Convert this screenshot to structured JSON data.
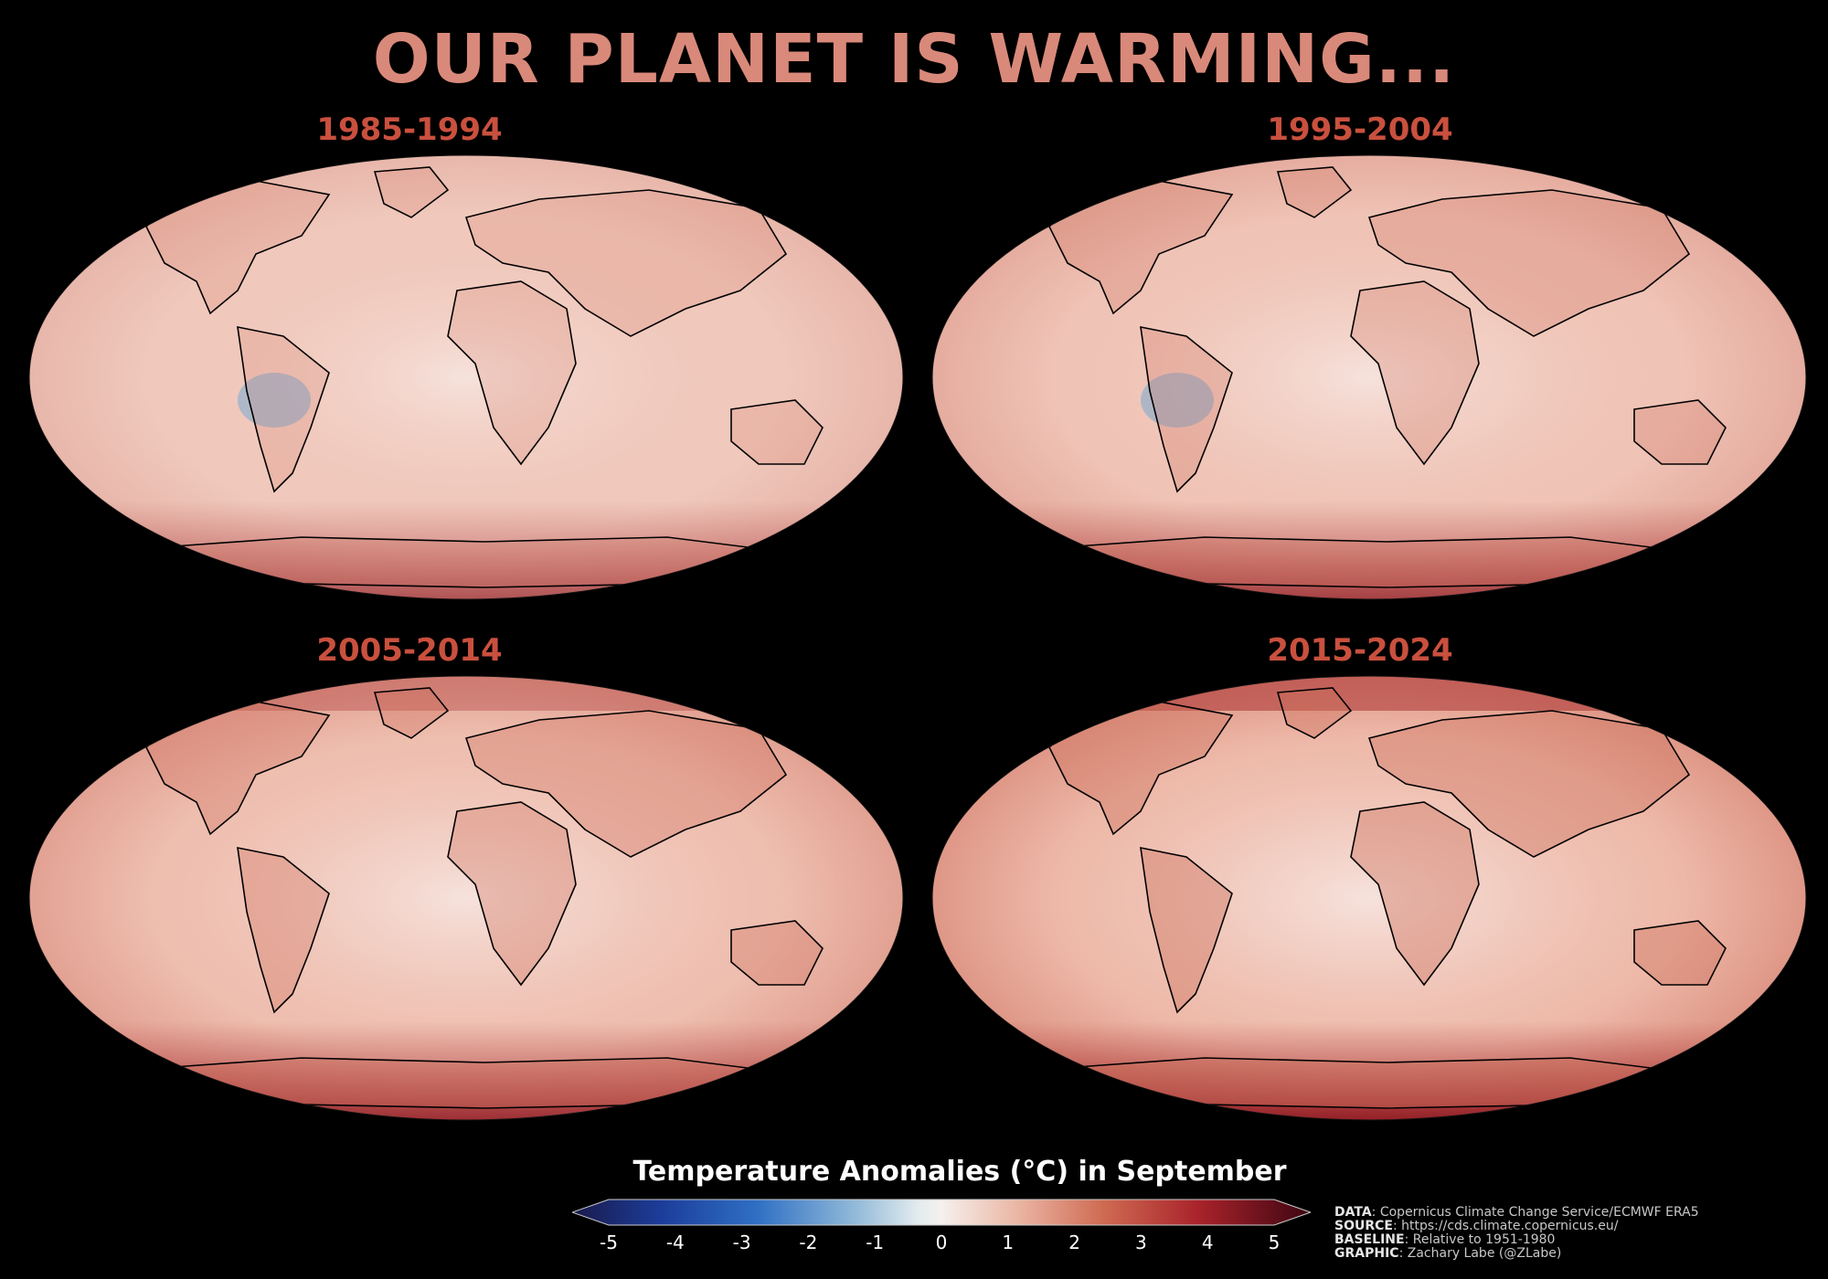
{
  "title": "OUR PLANET IS WARMING...",
  "colors": {
    "title": "#d9897a",
    "panel_title": "#c9503e"
  },
  "panels": [
    {
      "label": "1985-1994",
      "level": 0.25
    },
    {
      "label": "1995-2004",
      "level": 0.45
    },
    {
      "label": "2005-2014",
      "level": 0.65
    },
    {
      "label": "2015-2024",
      "level": 0.85
    }
  ],
  "colorbar": {
    "title": "Temperature Anomalies (°C) in September",
    "ticks": [
      "-5",
      "-4",
      "-3",
      "-2",
      "-1",
      "0",
      "1",
      "2",
      "3",
      "4",
      "5"
    ]
  },
  "credits": [
    {
      "key": "DATA",
      "value": ": Copernicus Climate Change Service/ECMWF ERA5"
    },
    {
      "key": "SOURCE",
      "value": ": https://cds.climate.copernicus.eu/"
    },
    {
      "key": "BASELINE",
      "value": ": Relative to 1951-1980"
    },
    {
      "key": "GRAPHIC",
      "value": ": Zachary Labe (@ZLabe)"
    }
  ]
}
